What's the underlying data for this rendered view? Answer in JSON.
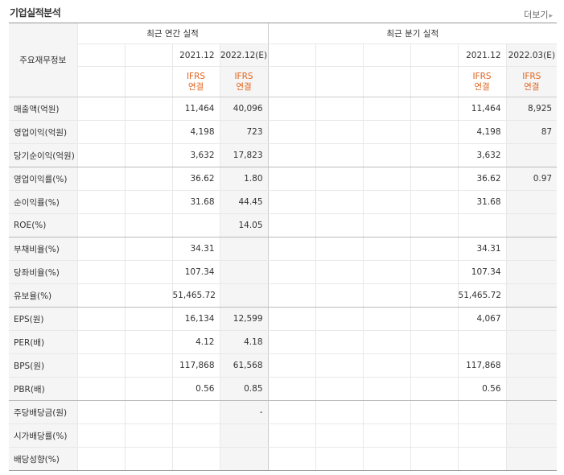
{
  "header": {
    "title": "기업실적분석",
    "more_label": "더보기"
  },
  "table": {
    "row_header_label": "주요재무정보",
    "annual_group": "최근 연간 실적",
    "quarter_group": "최근 분기 실적",
    "annual_periods": [
      "2021.12",
      "2022.12(E)"
    ],
    "quarter_periods": [
      "2021.12",
      "2022.03(E)"
    ],
    "ifrs_label": "IFRS",
    "consolidated_label": "연결",
    "rows": [
      {
        "label": "매출액(억원)",
        "a1": "11,464",
        "a2": "40,096",
        "q1": "11,464",
        "q2": "8,925"
      },
      {
        "label": "영업이익(억원)",
        "a1": "4,198",
        "a2": "723",
        "q1": "4,198",
        "q2": "87"
      },
      {
        "label": "당기순이익(억원)",
        "a1": "3,632",
        "a2": "17,823",
        "q1": "3,632",
        "q2": ""
      },
      {
        "label": "영업이익률(%)",
        "a1": "36.62",
        "a2": "1.80",
        "q1": "36.62",
        "q2": "0.97"
      },
      {
        "label": "순이익률(%)",
        "a1": "31.68",
        "a2": "44.45",
        "q1": "31.68",
        "q2": ""
      },
      {
        "label": "ROE(%)",
        "a1": "",
        "a2": "14.05",
        "q1": "",
        "q2": ""
      },
      {
        "label": "부채비율(%)",
        "a1": "34.31",
        "a2": "",
        "q1": "34.31",
        "q2": ""
      },
      {
        "label": "당좌비율(%)",
        "a1": "107.34",
        "a2": "",
        "q1": "107.34",
        "q2": ""
      },
      {
        "label": "유보율(%)",
        "a1": "51,465.72",
        "a2": "",
        "q1": "51,465.72",
        "q2": ""
      },
      {
        "label": "EPS(원)",
        "a1": "16,134",
        "a2": "12,599",
        "q1": "4,067",
        "q2": ""
      },
      {
        "label": "PER(배)",
        "a1": "4.12",
        "a2": "4.18",
        "q1": "",
        "q2": ""
      },
      {
        "label": "BPS(원)",
        "a1": "117,868",
        "a2": "61,568",
        "q1": "117,868",
        "q2": ""
      },
      {
        "label": "PBR(배)",
        "a1": "0.56",
        "a2": "0.85",
        "q1": "0.56",
        "q2": ""
      },
      {
        "label": "주당배당금(원)",
        "a1": "",
        "a2": "-",
        "q1": "",
        "q2": ""
      },
      {
        "label": "시가배당률(%)",
        "a1": "",
        "a2": "",
        "q1": "",
        "q2": ""
      },
      {
        "label": "배당성향(%)",
        "a1": "",
        "a2": "",
        "q1": "",
        "q2": ""
      }
    ]
  }
}
